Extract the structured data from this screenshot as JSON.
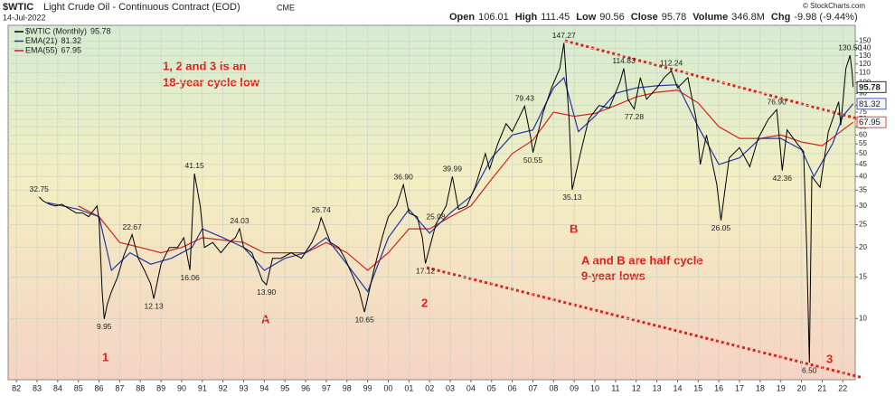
{
  "header": {
    "symbol": "$WTIC",
    "name": "Light Crude Oil - Continuous Contract (EOD)",
    "exchange": "CME",
    "date": "14-Jul-2022",
    "copyright": "© StockCharts.com",
    "quote": [
      {
        "label": "Open",
        "value": "106.01"
      },
      {
        "label": "High",
        "value": "111.45"
      },
      {
        "label": "Low",
        "value": "90.56"
      },
      {
        "label": "Close",
        "value": "95.78"
      },
      {
        "label": "Volume",
        "value": "346.8M"
      },
      {
        "label": "Chg",
        "value": "-9.98 (-9.44%)"
      }
    ]
  },
  "chart_data": {
    "type": "line",
    "log_scale": true,
    "grid": true,
    "legend": "upper left",
    "xlim": [
      1981.6,
      2022.6
    ],
    "ylim": [
      5.5,
      175
    ],
    "xticks": [
      {
        "value": 1982,
        "label": "82"
      },
      {
        "value": 1983,
        "label": "83"
      },
      {
        "value": 1984,
        "label": "84"
      },
      {
        "value": 1985,
        "label": "85"
      },
      {
        "value": 1986,
        "label": "86"
      },
      {
        "value": 1987,
        "label": "87"
      },
      {
        "value": 1988,
        "label": "88"
      },
      {
        "value": 1989,
        "label": "89"
      },
      {
        "value": 1990,
        "label": "90"
      },
      {
        "value": 1991,
        "label": "91"
      },
      {
        "value": 1992,
        "label": "92"
      },
      {
        "value": 1993,
        "label": "93"
      },
      {
        "value": 1994,
        "label": "94"
      },
      {
        "value": 1995,
        "label": "95"
      },
      {
        "value": 1996,
        "label": "96"
      },
      {
        "value": 1997,
        "label": "97"
      },
      {
        "value": 1998,
        "label": "98"
      },
      {
        "value": 1999,
        "label": "99"
      },
      {
        "value": 2000,
        "label": "00"
      },
      {
        "value": 2001,
        "label": "01"
      },
      {
        "value": 2002,
        "label": "02"
      },
      {
        "value": 2003,
        "label": "03"
      },
      {
        "value": 2004,
        "label": "04"
      },
      {
        "value": 2005,
        "label": "05"
      },
      {
        "value": 2006,
        "label": "06"
      },
      {
        "value": 2007,
        "label": "07"
      },
      {
        "value": 2008,
        "label": "08"
      },
      {
        "value": 2009,
        "label": "09"
      },
      {
        "value": 2010,
        "label": "10"
      },
      {
        "value": 2011,
        "label": "11"
      },
      {
        "value": 2012,
        "label": "12"
      },
      {
        "value": 2013,
        "label": "13"
      },
      {
        "value": 2014,
        "label": "14"
      },
      {
        "value": 2015,
        "label": "15"
      },
      {
        "value": 2016,
        "label": "16"
      },
      {
        "value": 2017,
        "label": "17"
      },
      {
        "value": 2018,
        "label": "18"
      },
      {
        "value": 2019,
        "label": "19"
      },
      {
        "value": 2020,
        "label": "20"
      },
      {
        "value": 2021,
        "label": "21"
      },
      {
        "value": 2022,
        "label": "22"
      }
    ],
    "yticks": [
      10,
      15,
      20,
      25,
      30,
      35,
      40,
      45,
      50,
      55,
      60,
      65,
      70,
      75,
      80,
      90,
      100,
      110,
      120,
      130,
      140,
      150
    ],
    "series": [
      {
        "name": "$WTIC (Monthly)",
        "color": "#000000",
        "x": [
          1983.1,
          1983.3,
          1983.6,
          1983.9,
          1984.2,
          1984.6,
          1984.9,
          1985.2,
          1985.5,
          1985.9,
          1986.0,
          1986.15,
          1986.25,
          1986.4,
          1986.6,
          1986.9,
          1987.2,
          1987.45,
          1987.6,
          1987.9,
          1988.2,
          1988.5,
          1988.65,
          1989.0,
          1989.4,
          1989.8,
          1990.1,
          1990.4,
          1990.62,
          1990.9,
          1991.1,
          1991.5,
          1991.9,
          1992.3,
          1992.6,
          1992.8,
          1993.0,
          1993.4,
          1993.9,
          1994.1,
          1994.4,
          1994.8,
          1995.3,
          1995.8,
          1996.3,
          1996.6,
          1996.75,
          1997.2,
          1997.6,
          1997.9,
          1998.3,
          1998.6,
          1998.85,
          1999.3,
          1999.7,
          2000.0,
          2000.4,
          2000.73,
          2001.0,
          2001.4,
          2001.65,
          2001.8,
          2002.3,
          2002.8,
          2003.1,
          2003.4,
          2003.8,
          2004.2,
          2004.7,
          2004.9,
          2005.3,
          2005.7,
          2006.0,
          2006.6,
          2006.9,
          2007.0,
          2007.5,
          2007.9,
          2008.3,
          2008.5,
          2008.75,
          2008.9,
          2009.3,
          2009.7,
          2010.2,
          2010.7,
          2011.2,
          2011.4,
          2011.6,
          2011.9,
          2012.2,
          2012.5,
          2013.0,
          2013.35,
          2013.7,
          2014.0,
          2014.5,
          2014.9,
          2015.1,
          2015.4,
          2015.9,
          2016.1,
          2016.5,
          2017.0,
          2017.5,
          2017.9,
          2018.4,
          2018.8,
          2019.07,
          2019.3,
          2019.8,
          2020.1,
          2020.25,
          2020.38,
          2020.5,
          2020.9,
          2021.3,
          2021.8,
          2021.9,
          2022.15,
          2022.35,
          2022.45,
          2022.5
        ],
        "values": [
          32.75,
          31.5,
          30.5,
          30,
          30.5,
          29,
          28,
          28,
          27,
          30,
          26,
          13,
          9.95,
          11.5,
          13,
          15,
          18.5,
          21,
          22.67,
          18,
          16,
          14,
          12.13,
          17,
          20,
          20,
          22,
          16.06,
          41.15,
          30,
          20,
          21,
          19,
          21,
          22,
          24.03,
          20,
          19,
          14.5,
          13.9,
          18,
          18,
          19,
          18,
          21,
          24,
          26.74,
          21,
          20,
          18,
          15,
          13,
          10.65,
          16,
          22,
          27,
          30,
          36.9,
          28,
          27,
          22,
          17.12,
          25.08,
          30,
          39.99,
          29,
          30,
          36,
          50,
          43,
          55,
          67,
          62,
          79.43,
          58,
          50.55,
          75,
          95,
          115,
          147.27,
          70,
          35.13,
          50,
          70,
          80,
          78,
          100,
          114.83,
          85,
          77.28,
          105,
          85,
          95,
          105,
          112.24,
          95,
          105,
          70,
          45,
          60,
          37,
          26.05,
          48,
          53,
          44,
          58,
          70,
          76.9,
          42.36,
          63,
          55,
          51,
          20,
          6.5,
          40,
          36,
          62,
          83,
          66,
          115,
          130.5,
          110,
          95.78
        ],
        "value_labels": [
          "32.75",
          null,
          null,
          null,
          null,
          null,
          null,
          null,
          null,
          null,
          null,
          null,
          "9.95",
          null,
          null,
          null,
          null,
          null,
          "22.67",
          null,
          null,
          null,
          "12.13",
          null,
          null,
          null,
          null,
          "16.06",
          "41.15",
          null,
          null,
          null,
          null,
          null,
          null,
          "24.03",
          null,
          null,
          null,
          "13.90",
          null,
          null,
          null,
          null,
          null,
          null,
          "26.74",
          null,
          null,
          null,
          null,
          null,
          "10.65",
          null,
          null,
          null,
          null,
          "36.90",
          null,
          null,
          null,
          "17.12",
          "25.08",
          null,
          "39.99",
          null,
          null,
          null,
          null,
          null,
          null,
          null,
          null,
          "79.43",
          null,
          "50.55",
          null,
          null,
          null,
          "147.27",
          null,
          "35.13",
          null,
          null,
          null,
          null,
          null,
          "114.83",
          null,
          "77.28",
          null,
          null,
          null,
          null,
          "112.24",
          null,
          null,
          null,
          null,
          null,
          null,
          "26.05",
          null,
          null,
          null,
          null,
          null,
          "76.90",
          "42.36",
          null,
          null,
          null,
          null,
          "6.50",
          null,
          null,
          null,
          null,
          null,
          null,
          "130.50",
          null,
          null
        ]
      },
      {
        "name": "EMA(21)",
        "color": "#2236a8",
        "x": [
          1983.5,
          1985,
          1986,
          1986.6,
          1987.5,
          1988.5,
          1989.5,
          1990.5,
          1991,
          1992,
          1993,
          1994,
          1995,
          1996,
          1997,
          1998,
          1999,
          2000,
          2001,
          2002,
          2003,
          2004,
          2005,
          2006,
          2007,
          2008,
          2008.5,
          2009.2,
          2010,
          2011,
          2012,
          2013,
          2014,
          2015,
          2016,
          2017,
          2018,
          2019,
          2020,
          2020.6,
          2021.5,
          2022,
          2022.5
        ],
        "values": [
          31,
          29,
          27,
          16,
          19,
          17,
          18,
          20,
          24,
          22,
          20,
          16,
          18,
          19,
          22,
          17,
          13,
          22,
          29,
          23,
          28,
          33,
          48,
          60,
          63,
          95,
          105,
          62,
          72,
          90,
          95,
          97,
          98,
          65,
          45,
          48,
          58,
          58,
          52,
          40,
          55,
          72,
          81.32
        ]
      },
      {
        "name": "EMA(55)",
        "color": "#d4231f",
        "x": [
          1985,
          1986,
          1987,
          1988,
          1989,
          1990,
          1991,
          1993,
          1994,
          1996,
          1997,
          1998,
          1999,
          2000,
          2001,
          2002,
          2003,
          2004,
          2005,
          2006,
          2007,
          2008,
          2009,
          2010,
          2011,
          2012,
          2013,
          2014,
          2015,
          2016,
          2017,
          2018,
          2019,
          2020,
          2021,
          2022,
          2022.5
        ],
        "values": [
          30,
          27,
          21,
          20,
          19,
          20,
          22,
          21,
          19,
          19,
          21,
          19,
          16,
          19,
          24,
          24,
          27,
          30,
          39,
          50,
          57,
          75,
          72,
          74,
          80,
          87,
          91,
          93,
          82,
          65,
          58,
          58,
          60,
          56,
          54,
          63,
          67.95
        ]
      }
    ],
    "annotations": [
      "1, 2 and 3 is an",
      "18-year cycle low",
      "1",
      "A",
      "2",
      "B",
      "3",
      "A and B are half cycle",
      "9-year lows"
    ]
  }
}
